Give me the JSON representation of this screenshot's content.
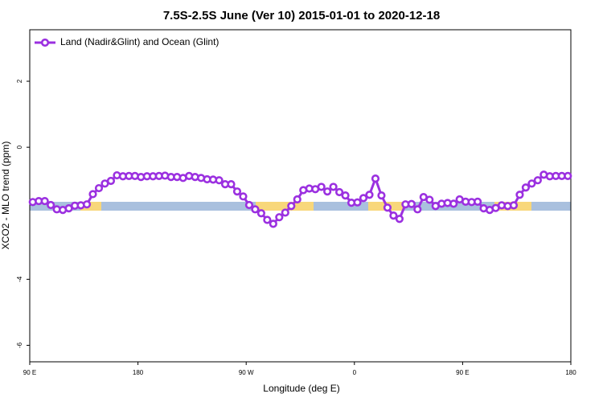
{
  "chart_data": {
    "type": "line",
    "title": "7.5S-2.5S June (Ver 10)   2015-01-01 to 2020-12-18",
    "xlabel": "Longitude (deg E)",
    "ylabel": "XCO2 - MLO trend (ppm)",
    "x": [
      92.5,
      97.5,
      102.5,
      107.5,
      112.5,
      117.5,
      122.5,
      127.5,
      132.5,
      137.5,
      142.5,
      147.5,
      152.5,
      157.5,
      162.5,
      167.5,
      172.5,
      177.5,
      182.5,
      187.5,
      192.5,
      197.5,
      202.5,
      207.5,
      212.5,
      217.5,
      222.5,
      227.5,
      232.5,
      237.5,
      242.5,
      247.5,
      252.5,
      257.5,
      262.5,
      267.5,
      272.5,
      277.5,
      282.5,
      287.5,
      292.5,
      297.5,
      302.5,
      307.5,
      312.5,
      317.5,
      322.5,
      327.5,
      332.5,
      337.5,
      342.5,
      347.5,
      352.5,
      357.5,
      362.5,
      367.5,
      372.5,
      377.5,
      382.5,
      387.5,
      392.5,
      397.5,
      402.5,
      407.5,
      412.5,
      417.5,
      422.5,
      427.5,
      432.5,
      437.5,
      442.5,
      447.5,
      452.5,
      457.5,
      462.5,
      467.5,
      472.5,
      477.5,
      482.5,
      487.5,
      492.5,
      497.5,
      502.5,
      507.5,
      512.5,
      517.5,
      522.5,
      527.5,
      532.5,
      537.5
    ],
    "series": [
      {
        "name": "Land (Nadir&Glint) and Ocean (Glint)",
        "color": "#9b30e0",
        "values": [
          -1.66,
          -1.63,
          -1.63,
          -1.75,
          -1.88,
          -1.9,
          -1.85,
          -1.77,
          -1.76,
          -1.73,
          -1.42,
          -1.24,
          -1.1,
          -1.02,
          -0.85,
          -0.88,
          -0.87,
          -0.87,
          -0.9,
          -0.88,
          -0.88,
          -0.87,
          -0.86,
          -0.9,
          -0.9,
          -0.93,
          -0.87,
          -0.9,
          -0.93,
          -0.97,
          -0.98,
          -1.0,
          -1.12,
          -1.12,
          -1.34,
          -1.49,
          -1.75,
          -1.88,
          -2.0,
          -2.2,
          -2.32,
          -2.12,
          -1.98,
          -1.78,
          -1.58,
          -1.3,
          -1.25,
          -1.27,
          -1.2,
          -1.34,
          -1.2,
          -1.36,
          -1.46,
          -1.68,
          -1.67,
          -1.54,
          -1.44,
          -0.95,
          -1.46,
          -1.83,
          -2.07,
          -2.17,
          -1.73,
          -1.72,
          -1.88,
          -1.51,
          -1.59,
          -1.78,
          -1.71,
          -1.69,
          -1.71,
          -1.58,
          -1.65,
          -1.66,
          -1.65,
          -1.85,
          -1.9,
          -1.84,
          -1.76,
          -1.78,
          -1.76,
          -1.44,
          -1.22,
          -1.1,
          -1.0,
          -0.83,
          -0.88,
          -0.87,
          -0.87,
          -0.87
        ]
      }
    ],
    "xlim": [
      90,
      540
    ],
    "xticks": [
      {
        "value": 90,
        "label": "90 E"
      },
      180,
      {
        "value": 270,
        "label": "90 W"
      },
      {
        "value": 360,
        "label": "0"
      },
      {
        "value": 450,
        "label": "90 E"
      },
      {
        "value": 540,
        "label": "180"
      }
    ],
    "ylim": [
      -6.5,
      3.56
    ],
    "yticks": [
      -6,
      -4,
      0,
      2
    ],
    "legend": "upper left"
  }
}
